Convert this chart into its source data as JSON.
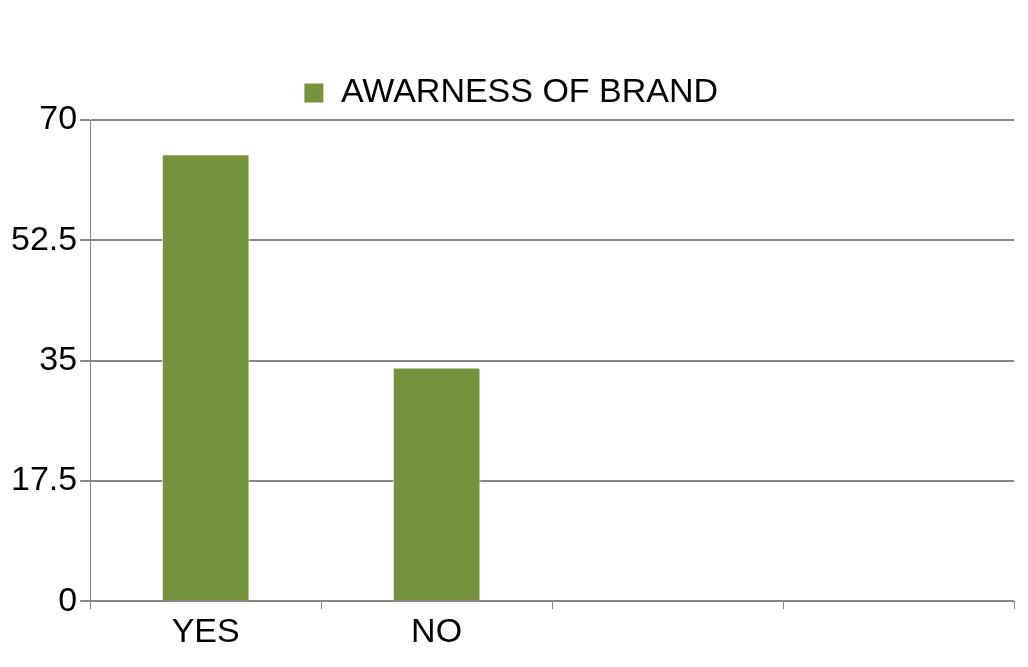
{
  "chart_data": {
    "type": "bar",
    "categories": [
      "YES",
      "NO",
      null,
      null
    ],
    "series": [
      {
        "name": "AWARNESS OF BRAND",
        "color": "#76923c",
        "values": [
          65,
          34,
          null,
          null
        ]
      }
    ],
    "ylim": [
      0,
      70
    ],
    "yticks": [
      0,
      17.5,
      35,
      52.5,
      70
    ],
    "grid": "y",
    "legend": "top"
  }
}
